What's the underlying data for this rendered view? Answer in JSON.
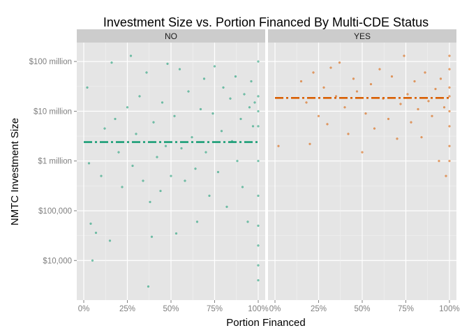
{
  "chart_data": {
    "type": "scatter",
    "title": "Investment Size vs. Portion Financed By Multi-CDE Status",
    "xlabel": "Portion Financed",
    "ylabel": "NMTC Investment Size",
    "x_scale": "linear",
    "y_scale": "log10",
    "xlim": [
      -0.04,
      1.04
    ],
    "ylim": [
      1600,
      240000000
    ],
    "x_ticks": [
      {
        "value": 0,
        "label": "0%"
      },
      {
        "value": 0.25,
        "label": "25%"
      },
      {
        "value": 0.5,
        "label": "50%"
      },
      {
        "value": 0.75,
        "label": "75%"
      },
      {
        "value": 1,
        "label": "100%"
      }
    ],
    "y_ticks": [
      {
        "value": 10000,
        "label": "$10,000"
      },
      {
        "value": 100000,
        "label": "$100,000"
      },
      {
        "value": 1000000,
        "label": "$1 million"
      },
      {
        "value": 10000000,
        "label": "$10 million"
      },
      {
        "value": 100000000,
        "label": "$100 million"
      }
    ],
    "grid": true,
    "facets": [
      {
        "label": "NO",
        "color": "#1b9e77",
        "mean_line": 2400000,
        "points": [
          [
            0.02,
            30000000
          ],
          [
            0.03,
            900000
          ],
          [
            0.04,
            55000
          ],
          [
            0.05,
            10000
          ],
          [
            0.07,
            36000
          ],
          [
            0.1,
            500000
          ],
          [
            0.12,
            4500000
          ],
          [
            0.15,
            25000
          ],
          [
            0.16,
            95000000
          ],
          [
            0.18,
            7000000
          ],
          [
            0.2,
            1500000
          ],
          [
            0.22,
            300000
          ],
          [
            0.25,
            12000000
          ],
          [
            0.27,
            130000000
          ],
          [
            0.28,
            800000
          ],
          [
            0.3,
            3500000
          ],
          [
            0.32,
            20000000
          ],
          [
            0.34,
            400000
          ],
          [
            0.36,
            60000000
          ],
          [
            0.37,
            3000
          ],
          [
            0.38,
            150000
          ],
          [
            0.39,
            30000
          ],
          [
            0.4,
            6000000
          ],
          [
            0.42,
            1200000
          ],
          [
            0.44,
            250000
          ],
          [
            0.45,
            15000000
          ],
          [
            0.47,
            2000000
          ],
          [
            0.48,
            90000000
          ],
          [
            0.5,
            500000
          ],
          [
            0.52,
            8000000
          ],
          [
            0.53,
            35000
          ],
          [
            0.55,
            70000000
          ],
          [
            0.56,
            1800000
          ],
          [
            0.58,
            400000
          ],
          [
            0.6,
            25000000
          ],
          [
            0.62,
            3000000
          ],
          [
            0.64,
            700000
          ],
          [
            0.65,
            60000
          ],
          [
            0.67,
            11000000
          ],
          [
            0.69,
            45000000
          ],
          [
            0.7,
            1500000
          ],
          [
            0.72,
            200000
          ],
          [
            0.74,
            9000000
          ],
          [
            0.75,
            80000000
          ],
          [
            0.77,
            600000
          ],
          [
            0.79,
            4000000
          ],
          [
            0.8,
            30000000
          ],
          [
            0.82,
            120000
          ],
          [
            0.84,
            18000000
          ],
          [
            0.85,
            2500000
          ],
          [
            0.87,
            50000000
          ],
          [
            0.88,
            1000000
          ],
          [
            0.9,
            7000000
          ],
          [
            0.91,
            300000
          ],
          [
            0.92,
            22000000
          ],
          [
            0.94,
            60000
          ],
          [
            0.95,
            12000000
          ],
          [
            0.96,
            40000000
          ],
          [
            0.97,
            5000000
          ],
          [
            0.98,
            15000000
          ],
          [
            1.0,
            100000000
          ],
          [
            1.0,
            20000000
          ],
          [
            1.0,
            10000000
          ],
          [
            1.0,
            5000000
          ],
          [
            1.0,
            1000000
          ],
          [
            1.0,
            200000
          ],
          [
            1.0,
            50000
          ],
          [
            1.0,
            20000
          ],
          [
            1.0,
            8000
          ],
          [
            1.0,
            4000
          ]
        ]
      },
      {
        "label": "YES",
        "color": "#d95f02",
        "mean_line": 18500000,
        "points": [
          [
            0.02,
            2000000
          ],
          [
            0.15,
            40000000
          ],
          [
            0.18,
            15000000
          ],
          [
            0.2,
            2200000
          ],
          [
            0.22,
            60000000
          ],
          [
            0.25,
            8000000
          ],
          [
            0.28,
            30000000
          ],
          [
            0.3,
            5500000
          ],
          [
            0.32,
            75000000
          ],
          [
            0.35,
            20000000
          ],
          [
            0.37,
            95000000
          ],
          [
            0.4,
            12000000
          ],
          [
            0.42,
            3500000
          ],
          [
            0.45,
            45000000
          ],
          [
            0.47,
            25000000
          ],
          [
            0.5,
            1500000
          ],
          [
            0.52,
            9000000
          ],
          [
            0.55,
            35000000
          ],
          [
            0.57,
            4500000
          ],
          [
            0.6,
            70000000
          ],
          [
            0.62,
            18000000
          ],
          [
            0.65,
            7000000
          ],
          [
            0.67,
            50000000
          ],
          [
            0.7,
            2800000
          ],
          [
            0.72,
            14000000
          ],
          [
            0.74,
            130000000
          ],
          [
            0.76,
            22000000
          ],
          [
            0.78,
            6000000
          ],
          [
            0.8,
            40000000
          ],
          [
            0.82,
            11000000
          ],
          [
            0.84,
            3000000
          ],
          [
            0.86,
            60000000
          ],
          [
            0.88,
            16000000
          ],
          [
            0.9,
            8000000
          ],
          [
            0.92,
            28000000
          ],
          [
            0.94,
            1000000
          ],
          [
            0.95,
            45000000
          ],
          [
            0.97,
            12000000
          ],
          [
            0.98,
            500000
          ],
          [
            1.0,
            130000000
          ],
          [
            1.0,
            70000000
          ],
          [
            1.0,
            30000000
          ],
          [
            1.0,
            20000000
          ],
          [
            1.0,
            10000000
          ],
          [
            1.0,
            5000000
          ],
          [
            1.0,
            2000000
          ],
          [
            1.0,
            1000000
          ]
        ]
      }
    ]
  }
}
